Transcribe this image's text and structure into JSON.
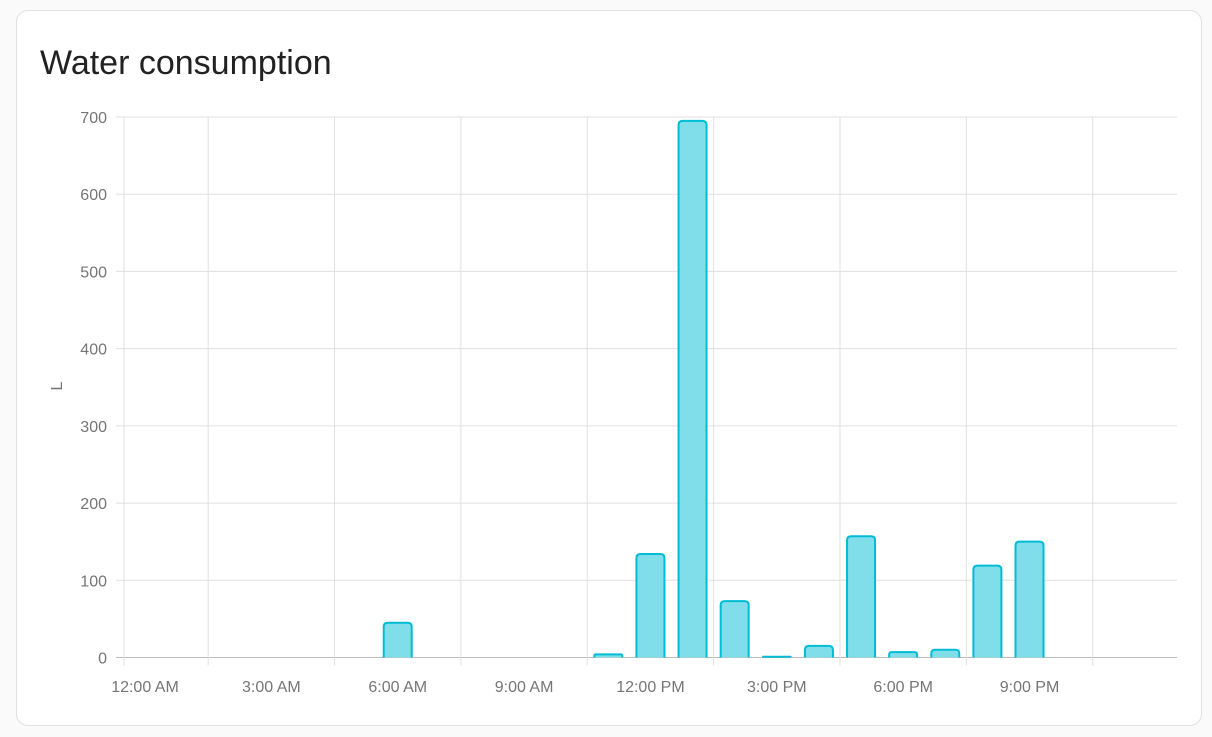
{
  "card": {
    "title": "Water consumption"
  },
  "chart_data": {
    "type": "bar",
    "title": "Water consumption",
    "ylabel": "L",
    "xlabel": "",
    "ylim": [
      0,
      700
    ],
    "yticks": [
      "0",
      "100",
      "200",
      "300",
      "400",
      "500",
      "600",
      "700"
    ],
    "xtick_labels": [
      "12:00 AM",
      "3:00 AM",
      "6:00 AM",
      "9:00 AM",
      "12:00 PM",
      "3:00 PM",
      "6:00 PM",
      "9:00 PM"
    ],
    "categories": [
      "12 AM",
      "1 AM",
      "2 AM",
      "3 AM",
      "4 AM",
      "5 AM",
      "6 AM",
      "7 AM",
      "8 AM",
      "9 AM",
      "10 AM",
      "11 AM",
      "12 PM",
      "1 PM",
      "2 PM",
      "3 PM",
      "4 PM",
      "5 PM",
      "6 PM",
      "7 PM",
      "8 PM",
      "9 PM",
      "10 PM",
      "11 PM"
    ],
    "values": [
      0,
      0,
      0,
      0,
      0,
      0,
      45,
      0,
      0,
      0,
      0,
      4,
      134,
      695,
      73,
      1,
      15,
      157,
      7,
      10,
      119,
      150,
      0,
      0
    ],
    "grid": true,
    "colors": {
      "fill": "#80deea",
      "stroke": "#00bcd4"
    }
  }
}
